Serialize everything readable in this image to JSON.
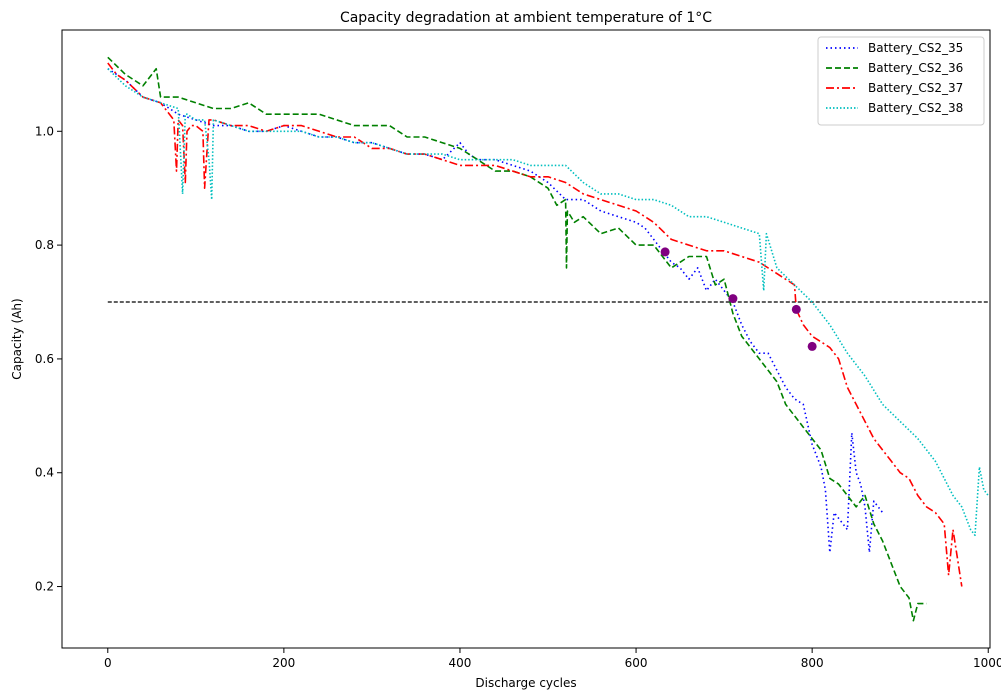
{
  "chart_data": {
    "type": "line",
    "title": "Capacity degradation at ambient temperature of 1°C",
    "xlabel": "Discharge cycles",
    "ylabel": "Capacity (Ah)",
    "xlim": [
      -52,
      1002
    ],
    "ylim": [
      0.092,
      1.178
    ],
    "xticks": [
      0,
      200,
      400,
      600,
      800,
      1000
    ],
    "yticks": [
      0.2,
      0.4,
      0.6,
      0.8,
      1.0
    ],
    "ytick_labels": [
      "0.2",
      "0.4",
      "0.6",
      "0.8",
      "1.0"
    ],
    "grid": false,
    "legend_position": "top-right",
    "threshold": {
      "y": 0.7,
      "x": [
        0,
        1000
      ],
      "color": "#000000"
    },
    "markers": {
      "color": "#800080",
      "points": [
        {
          "x": 633,
          "y": 0.788
        },
        {
          "x": 710,
          "y": 0.706
        },
        {
          "x": 782,
          "y": 0.687
        },
        {
          "x": 800,
          "y": 0.622
        }
      ]
    },
    "series": [
      {
        "name": "Battery_CS2_35",
        "color": "#0000ff",
        "dash": "1.5,3",
        "x": [
          0,
          20,
          40,
          60,
          80,
          100,
          120,
          140,
          160,
          180,
          200,
          220,
          240,
          260,
          280,
          300,
          320,
          340,
          360,
          380,
          400,
          410,
          420,
          440,
          460,
          480,
          500,
          520,
          540,
          560,
          580,
          600,
          610,
          620,
          630,
          640,
          650,
          660,
          670,
          680,
          690,
          700,
          710,
          720,
          730,
          740,
          750,
          760,
          770,
          780,
          790,
          800,
          810,
          815,
          820,
          825,
          830,
          840,
          845,
          850,
          855,
          860,
          865,
          870,
          875,
          880
        ],
        "y": [
          1.11,
          1.09,
          1.06,
          1.05,
          1.03,
          1.02,
          1.01,
          1.01,
          1.0,
          1.0,
          1.01,
          1.0,
          0.99,
          0.99,
          0.98,
          0.98,
          0.97,
          0.96,
          0.96,
          0.95,
          0.98,
          0.96,
          0.95,
          0.95,
          0.94,
          0.93,
          0.91,
          0.88,
          0.88,
          0.86,
          0.85,
          0.84,
          0.83,
          0.81,
          0.79,
          0.77,
          0.76,
          0.74,
          0.76,
          0.72,
          0.74,
          0.72,
          0.7,
          0.66,
          0.63,
          0.61,
          0.61,
          0.58,
          0.55,
          0.53,
          0.52,
          0.45,
          0.41,
          0.37,
          0.26,
          0.33,
          0.32,
          0.3,
          0.47,
          0.4,
          0.38,
          0.34,
          0.26,
          0.35,
          0.34,
          0.33
        ]
      },
      {
        "name": "Battery_CS2_36",
        "color": "#008000",
        "dash": "6,3",
        "x": [
          0,
          20,
          40,
          55,
          60,
          80,
          100,
          120,
          140,
          160,
          180,
          200,
          220,
          240,
          260,
          280,
          300,
          320,
          340,
          360,
          380,
          400,
          420,
          440,
          460,
          480,
          500,
          510,
          520,
          521,
          522,
          530,
          540,
          560,
          580,
          600,
          620,
          640,
          660,
          680,
          690,
          700,
          710,
          720,
          730,
          740,
          750,
          760,
          770,
          780,
          790,
          800,
          810,
          820,
          830,
          840,
          850,
          860,
          870,
          880,
          890,
          900,
          910,
          915,
          920,
          930
        ],
        "y": [
          1.13,
          1.1,
          1.08,
          1.11,
          1.06,
          1.06,
          1.05,
          1.04,
          1.04,
          1.05,
          1.03,
          1.03,
          1.03,
          1.03,
          1.02,
          1.01,
          1.01,
          1.01,
          0.99,
          0.99,
          0.98,
          0.97,
          0.95,
          0.93,
          0.93,
          0.92,
          0.9,
          0.87,
          0.88,
          0.76,
          0.86,
          0.84,
          0.85,
          0.82,
          0.83,
          0.8,
          0.8,
          0.76,
          0.78,
          0.78,
          0.73,
          0.74,
          0.68,
          0.64,
          0.62,
          0.6,
          0.58,
          0.56,
          0.52,
          0.5,
          0.48,
          0.46,
          0.44,
          0.39,
          0.38,
          0.36,
          0.34,
          0.36,
          0.31,
          0.28,
          0.24,
          0.2,
          0.18,
          0.14,
          0.17,
          0.17
        ]
      },
      {
        "name": "Battery_CS2_37",
        "color": "#ff0000",
        "dash": "8,3,2,3",
        "x": [
          0,
          10,
          20,
          40,
          60,
          75,
          78,
          80,
          85,
          88,
          90,
          95,
          100,
          108,
          110,
          115,
          120,
          140,
          160,
          180,
          200,
          220,
          240,
          260,
          280,
          300,
          320,
          340,
          360,
          380,
          400,
          420,
          440,
          460,
          480,
          500,
          520,
          540,
          560,
          580,
          600,
          620,
          640,
          660,
          680,
          700,
          720,
          740,
          760,
          780,
          782,
          790,
          800,
          810,
          820,
          830,
          840,
          850,
          860,
          870,
          880,
          890,
          900,
          910,
          920,
          930,
          940,
          950,
          955,
          960,
          970
        ],
        "y": [
          1.12,
          1.1,
          1.09,
          1.06,
          1.05,
          1.02,
          0.93,
          1.02,
          1.01,
          0.91,
          1.0,
          1.01,
          1.01,
          1.0,
          0.9,
          1.02,
          1.02,
          1.01,
          1.01,
          1.0,
          1.01,
          1.01,
          1.0,
          0.99,
          0.99,
          0.97,
          0.97,
          0.96,
          0.96,
          0.95,
          0.94,
          0.94,
          0.94,
          0.93,
          0.92,
          0.92,
          0.91,
          0.89,
          0.88,
          0.87,
          0.86,
          0.84,
          0.81,
          0.8,
          0.79,
          0.79,
          0.78,
          0.77,
          0.75,
          0.73,
          0.687,
          0.66,
          0.64,
          0.63,
          0.62,
          0.6,
          0.55,
          0.52,
          0.49,
          0.46,
          0.44,
          0.42,
          0.4,
          0.39,
          0.36,
          0.34,
          0.33,
          0.31,
          0.22,
          0.3,
          0.2
        ]
      },
      {
        "name": "Battery_CS2_38",
        "color": "#00bfbf",
        "dash": "1.5,2",
        "x": [
          0,
          20,
          40,
          60,
          80,
          85,
          88,
          90,
          100,
          110,
          115,
          118,
          120,
          140,
          160,
          180,
          200,
          220,
          240,
          260,
          280,
          300,
          320,
          340,
          360,
          380,
          400,
          420,
          440,
          460,
          480,
          500,
          520,
          540,
          560,
          580,
          600,
          620,
          640,
          660,
          680,
          700,
          720,
          740,
          745,
          748,
          760,
          780,
          800,
          820,
          840,
          860,
          880,
          900,
          920,
          940,
          960,
          970,
          980,
          985,
          990,
          995,
          1000
        ],
        "y": [
          1.11,
          1.08,
          1.06,
          1.05,
          1.04,
          0.89,
          1.03,
          1.03,
          1.02,
          1.02,
          0.95,
          0.88,
          1.02,
          1.01,
          1.0,
          1.0,
          1.0,
          1.0,
          0.99,
          0.99,
          0.98,
          0.98,
          0.97,
          0.96,
          0.96,
          0.96,
          0.95,
          0.95,
          0.95,
          0.95,
          0.94,
          0.94,
          0.94,
          0.91,
          0.89,
          0.89,
          0.88,
          0.88,
          0.87,
          0.85,
          0.85,
          0.84,
          0.83,
          0.82,
          0.72,
          0.82,
          0.76,
          0.73,
          0.7,
          0.66,
          0.61,
          0.57,
          0.52,
          0.49,
          0.46,
          0.42,
          0.36,
          0.34,
          0.3,
          0.29,
          0.41,
          0.37,
          0.36
        ]
      }
    ]
  }
}
